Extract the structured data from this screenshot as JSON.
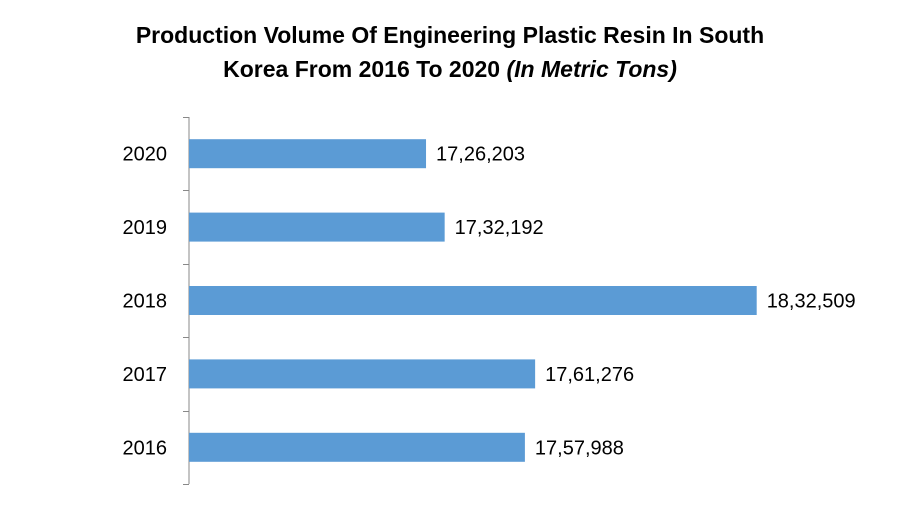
{
  "chart_data": {
    "type": "bar",
    "orientation": "horizontal",
    "title_line1": "Production Volume Of Engineering Plastic Resin In South",
    "title_line2": "Korea From 2016 To 2020 ",
    "title_unit": "(In Metric Tons)",
    "categories": [
      "2020",
      "2019",
      "2018",
      "2017",
      "2016"
    ],
    "values": [
      1726203,
      1732192,
      1832509,
      1761276,
      1757988
    ],
    "data_labels": [
      "17,26,203",
      "17,32,192",
      "18,32,509",
      "17,61,276",
      "17,57,988"
    ],
    "xlim": [
      1650000,
      1840000
    ],
    "bar_color": "#5B9BD5",
    "axis_color": "#888888",
    "grid": false,
    "legend": "none"
  }
}
